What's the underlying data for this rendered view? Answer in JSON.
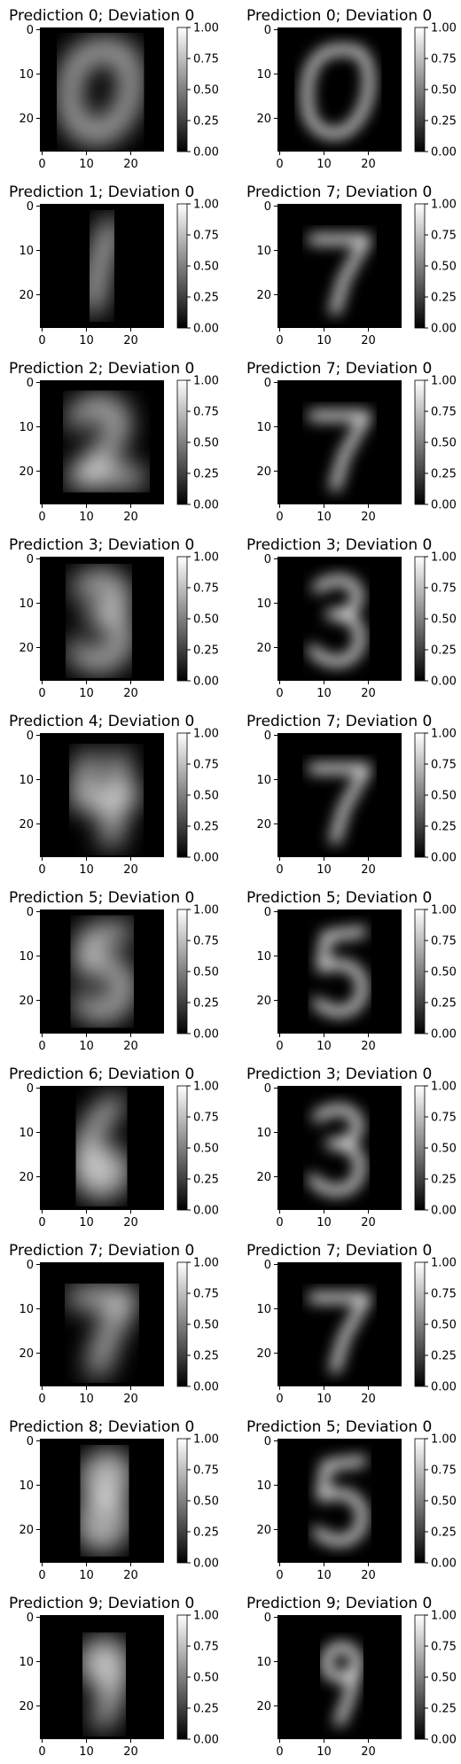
{
  "chart_data": {
    "type": "heatmap",
    "colormap": "gray",
    "colorbar": {
      "range": [
        0,
        1
      ],
      "ticks": [
        "0.00",
        "0.25",
        "0.50",
        "0.75",
        "1.00"
      ]
    },
    "image_x_ticks": [
      "0",
      "10",
      "20"
    ],
    "image_y_ticks": [
      "0",
      "10",
      "20"
    ],
    "image_x_tick_values": [
      0,
      10,
      20
    ],
    "image_y_tick_values": [
      0,
      10,
      20
    ],
    "image_size": [
      28,
      28
    ],
    "rows": [
      {
        "left": {
          "title": "Prediction 0; Deviation 0",
          "content": "0"
        },
        "right": {
          "title": "Prediction 0; Deviation 0",
          "content": "0"
        }
      },
      {
        "left": {
          "title": "Prediction 1; Deviation 0",
          "content": "1"
        },
        "right": {
          "title": "Prediction 7; Deviation 0",
          "content": "7"
        }
      },
      {
        "left": {
          "title": "Prediction 2; Deviation 0",
          "content": "2"
        },
        "right": {
          "title": "Prediction 7; Deviation 0",
          "content": "7"
        }
      },
      {
        "left": {
          "title": "Prediction 3; Deviation 0",
          "content": "3"
        },
        "right": {
          "title": "Prediction 3; Deviation 0",
          "content": "3"
        }
      },
      {
        "left": {
          "title": "Prediction 4; Deviation 0",
          "content": "4"
        },
        "right": {
          "title": "Prediction 7; Deviation 0",
          "content": "7"
        }
      },
      {
        "left": {
          "title": "Prediction 5; Deviation 0",
          "content": "5"
        },
        "right": {
          "title": "Prediction 5; Deviation 0",
          "content": "5"
        }
      },
      {
        "left": {
          "title": "Prediction 6; Deviation 0",
          "content": "6"
        },
        "right": {
          "title": "Prediction 3; Deviation 0",
          "content": "3"
        }
      },
      {
        "left": {
          "title": "Prediction 7; Deviation 0",
          "content": "7"
        },
        "right": {
          "title": "Prediction 7; Deviation 0",
          "content": "7"
        }
      },
      {
        "left": {
          "title": "Prediction 8; Deviation 0",
          "content": "8"
        },
        "right": {
          "title": "Prediction 5; Deviation 0",
          "content": "5"
        }
      },
      {
        "left": {
          "title": "Prediction 9; Deviation 0",
          "content": "9"
        },
        "right": {
          "title": "Prediction 9; Deviation 0",
          "content": "9"
        }
      }
    ]
  }
}
